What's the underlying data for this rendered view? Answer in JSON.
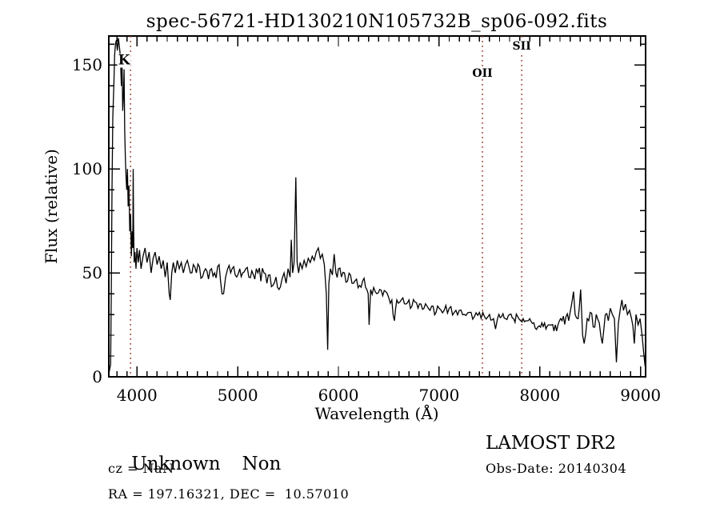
{
  "chart_data": {
    "type": "line",
    "title": "spec-56721-HD130210N105732B_sp06-092.fits",
    "xlabel": "Wavelength (Å)",
    "ylabel": "Flux (relative)",
    "xlim": [
      3720,
      9050
    ],
    "ylim": [
      0,
      164
    ],
    "x_ticks": [
      4000,
      5000,
      6000,
      7000,
      8000,
      9000
    ],
    "x_tick_labels": [
      "4000",
      "5000",
      "6000",
      "7000",
      "8000",
      "9000"
    ],
    "x_minor_step": 100,
    "y_ticks": [
      0,
      50,
      100,
      150
    ],
    "y_tick_labels": [
      "0",
      "50",
      "100",
      "150"
    ],
    "y_minor_step": 10,
    "grid": false,
    "line_color": "#000000",
    "marker_line_color": "#9a3928",
    "markers": [
      {
        "label": "K",
        "wavelength": 3936,
        "label_flux": 152,
        "label_dx": -8,
        "label_size": 17
      },
      {
        "label": "OII",
        "wavelength": 7430,
        "label_flux": 146,
        "label_dx": 0,
        "label_size": 14
      },
      {
        "label": "SII",
        "wavelength": 7820,
        "label_flux": 159,
        "label_dx": 0,
        "label_size": 14
      }
    ],
    "spectrum": {
      "anchors": [
        [
          3722,
          2
        ],
        [
          3738,
          6
        ],
        [
          3745,
          40
        ],
        [
          3752,
          90
        ],
        [
          3760,
          125
        ],
        [
          3770,
          140
        ],
        [
          3778,
          155
        ],
        [
          3786,
          160
        ],
        [
          3795,
          162
        ],
        [
          3805,
          157
        ],
        [
          3815,
          163
        ],
        [
          3825,
          159
        ],
        [
          3835,
          154
        ],
        [
          3845,
          140
        ],
        [
          3852,
          150
        ],
        [
          3858,
          128
        ],
        [
          3866,
          136
        ],
        [
          3872,
          148
        ],
        [
          3878,
          118
        ],
        [
          3885,
          104
        ],
        [
          3892,
          95
        ],
        [
          3898,
          90
        ],
        [
          3905,
          100
        ],
        [
          3912,
          82
        ],
        [
          3920,
          92
        ],
        [
          3928,
          70
        ],
        [
          3936,
          78
        ],
        [
          3944,
          58
        ],
        [
          3952,
          70
        ],
        [
          3958,
          62
        ],
        [
          3962,
          100
        ],
        [
          3966,
          72
        ],
        [
          3972,
          55
        ],
        [
          3980,
          60
        ],
        [
          3990,
          52
        ],
        [
          4000,
          62
        ],
        [
          4012,
          55
        ],
        [
          4025,
          61
        ],
        [
          4040,
          52
        ],
        [
          4060,
          58
        ],
        [
          4080,
          62
        ],
        [
          4100,
          55
        ],
        [
          4120,
          60
        ],
        [
          4140,
          50
        ],
        [
          4160,
          57
        ],
        [
          4180,
          60
        ],
        [
          4200,
          54
        ],
        [
          4220,
          58
        ],
        [
          4240,
          52
        ],
        [
          4260,
          56
        ],
        [
          4280,
          48
        ],
        [
          4300,
          55
        ],
        [
          4320,
          40
        ],
        [
          4330,
          37
        ],
        [
          4345,
          50
        ],
        [
          4360,
          55
        ],
        [
          4380,
          50
        ],
        [
          4400,
          56
        ],
        [
          4420,
          52
        ],
        [
          4440,
          55
        ],
        [
          4460,
          50
        ],
        [
          4480,
          54
        ],
        [
          4500,
          56
        ],
        [
          4530,
          50
        ],
        [
          4560,
          54
        ],
        [
          4590,
          50
        ],
        [
          4620,
          53
        ],
        [
          4650,
          48
        ],
        [
          4680,
          52
        ],
        [
          4710,
          47
        ],
        [
          4740,
          52
        ],
        [
          4770,
          50
        ],
        [
          4800,
          53
        ],
        [
          4830,
          46
        ],
        [
          4860,
          40
        ],
        [
          4880,
          48
        ],
        [
          4900,
          52
        ],
        [
          4930,
          50
        ],
        [
          4960,
          53
        ],
        [
          4990,
          48
        ],
        [
          5020,
          52
        ],
        [
          5050,
          50
        ],
        [
          5080,
          52
        ],
        [
          5110,
          48
        ],
        [
          5140,
          51
        ],
        [
          5170,
          47
        ],
        [
          5200,
          50
        ],
        [
          5230,
          46
        ],
        [
          5260,
          50
        ],
        [
          5290,
          45
        ],
        [
          5320,
          49
        ],
        [
          5350,
          44
        ],
        [
          5380,
          48
        ],
        [
          5410,
          42
        ],
        [
          5440,
          47
        ],
        [
          5460,
          50
        ],
        [
          5480,
          45
        ],
        [
          5500,
          52
        ],
        [
          5520,
          48
        ],
        [
          5532,
          66
        ],
        [
          5545,
          50
        ],
        [
          5560,
          55
        ],
        [
          5577,
          96
        ],
        [
          5590,
          55
        ],
        [
          5605,
          50
        ],
        [
          5620,
          55
        ],
        [
          5640,
          52
        ],
        [
          5660,
          56
        ],
        [
          5680,
          53
        ],
        [
          5700,
          57
        ],
        [
          5720,
          55
        ],
        [
          5740,
          58
        ],
        [
          5760,
          56
        ],
        [
          5780,
          60
        ],
        [
          5800,
          62
        ],
        [
          5820,
          57
        ],
        [
          5840,
          59
        ],
        [
          5860,
          54
        ],
        [
          5880,
          40
        ],
        [
          5893,
          13
        ],
        [
          5905,
          45
        ],
        [
          5920,
          52
        ],
        [
          5940,
          49
        ],
        [
          5958,
          59
        ],
        [
          5975,
          50
        ],
        [
          6000,
          52
        ],
        [
          6030,
          48
        ],
        [
          6060,
          50
        ],
        [
          6090,
          46
        ],
        [
          6120,
          49
        ],
        [
          6150,
          45
        ],
        [
          6180,
          47
        ],
        [
          6210,
          44
        ],
        [
          6240,
          46
        ],
        [
          6270,
          43
        ],
        [
          6295,
          40
        ],
        [
          6305,
          25
        ],
        [
          6320,
          42
        ],
        [
          6350,
          43
        ],
        [
          6380,
          40
        ],
        [
          6410,
          42
        ],
        [
          6440,
          39
        ],
        [
          6470,
          41
        ],
        [
          6500,
          38
        ],
        [
          6530,
          37
        ],
        [
          6556,
          27
        ],
        [
          6580,
          37
        ],
        [
          6610,
          36
        ],
        [
          6640,
          38
        ],
        [
          6670,
          35
        ],
        [
          6700,
          37
        ],
        [
          6730,
          34
        ],
        [
          6760,
          36
        ],
        [
          6790,
          33
        ],
        [
          6820,
          35
        ],
        [
          6850,
          33
        ],
        [
          6880,
          34
        ],
        [
          6910,
          32
        ],
        [
          6940,
          34
        ],
        [
          6970,
          31
        ],
        [
          7000,
          33
        ],
        [
          7050,
          32
        ],
        [
          7100,
          33
        ],
        [
          7150,
          31
        ],
        [
          7200,
          32
        ],
        [
          7250,
          30
        ],
        [
          7300,
          31
        ],
        [
          7350,
          29
        ],
        [
          7400,
          31
        ],
        [
          7450,
          29
        ],
        [
          7500,
          30
        ],
        [
          7540,
          28
        ],
        [
          7560,
          23
        ],
        [
          7580,
          28
        ],
        [
          7620,
          29
        ],
        [
          7660,
          28
        ],
        [
          7700,
          30
        ],
        [
          7740,
          28
        ],
        [
          7780,
          29
        ],
        [
          7810,
          27
        ],
        [
          7835,
          28
        ],
        [
          7860,
          27
        ],
        [
          7900,
          28
        ],
        [
          7940,
          26
        ],
        [
          7980,
          24
        ],
        [
          8020,
          26
        ],
        [
          8060,
          23
        ],
        [
          8100,
          25
        ],
        [
          8140,
          22
        ],
        [
          8180,
          25
        ],
        [
          8220,
          27
        ],
        [
          8260,
          29
        ],
        [
          8300,
          31
        ],
        [
          8334,
          41
        ],
        [
          8350,
          30
        ],
        [
          8380,
          28
        ],
        [
          8405,
          42
        ],
        [
          8425,
          20
        ],
        [
          8440,
          16
        ],
        [
          8470,
          28
        ],
        [
          8500,
          31
        ],
        [
          8530,
          24
        ],
        [
          8560,
          30
        ],
        [
          8590,
          26
        ],
        [
          8620,
          16
        ],
        [
          8650,
          30
        ],
        [
          8680,
          27
        ],
        [
          8700,
          33
        ],
        [
          8720,
          30
        ],
        [
          8740,
          28
        ],
        [
          8760,
          7
        ],
        [
          8780,
          26
        ],
        [
          8800,
          33
        ],
        [
          8815,
          37
        ],
        [
          8830,
          32
        ],
        [
          8850,
          35
        ],
        [
          8870,
          30
        ],
        [
          8890,
          32
        ],
        [
          8910,
          28
        ],
        [
          8938,
          16
        ],
        [
          8955,
          30
        ],
        [
          8975,
          25
        ],
        [
          8995,
          28
        ],
        [
          9015,
          20
        ],
        [
          9030,
          12
        ],
        [
          9045,
          5
        ]
      ],
      "noise_regions": [
        {
          "range": [
            3720,
            3755
          ],
          "amp": 2
        },
        {
          "range": [
            3755,
            3990
          ],
          "amp": 7
        },
        {
          "range": [
            3990,
            4400
          ],
          "amp": 5.5
        },
        {
          "range": [
            4400,
            5560
          ],
          "amp": 4.5
        },
        {
          "range": [
            5560,
            6000
          ],
          "amp": 3.5
        },
        {
          "range": [
            6000,
            7000
          ],
          "amp": 3
        },
        {
          "range": [
            7000,
            8200
          ],
          "amp": 2.2
        },
        {
          "range": [
            8200,
            9050
          ],
          "amp": 3.5
        }
      ]
    }
  },
  "annotations": {
    "class": "Unknown",
    "subclass": "Non",
    "cz": "cz = NaN",
    "radec": "RA = 197.16321, DEC =  10.57010",
    "survey": "LAMOST DR2",
    "obs_date": "Obs-Date: 20140304"
  }
}
